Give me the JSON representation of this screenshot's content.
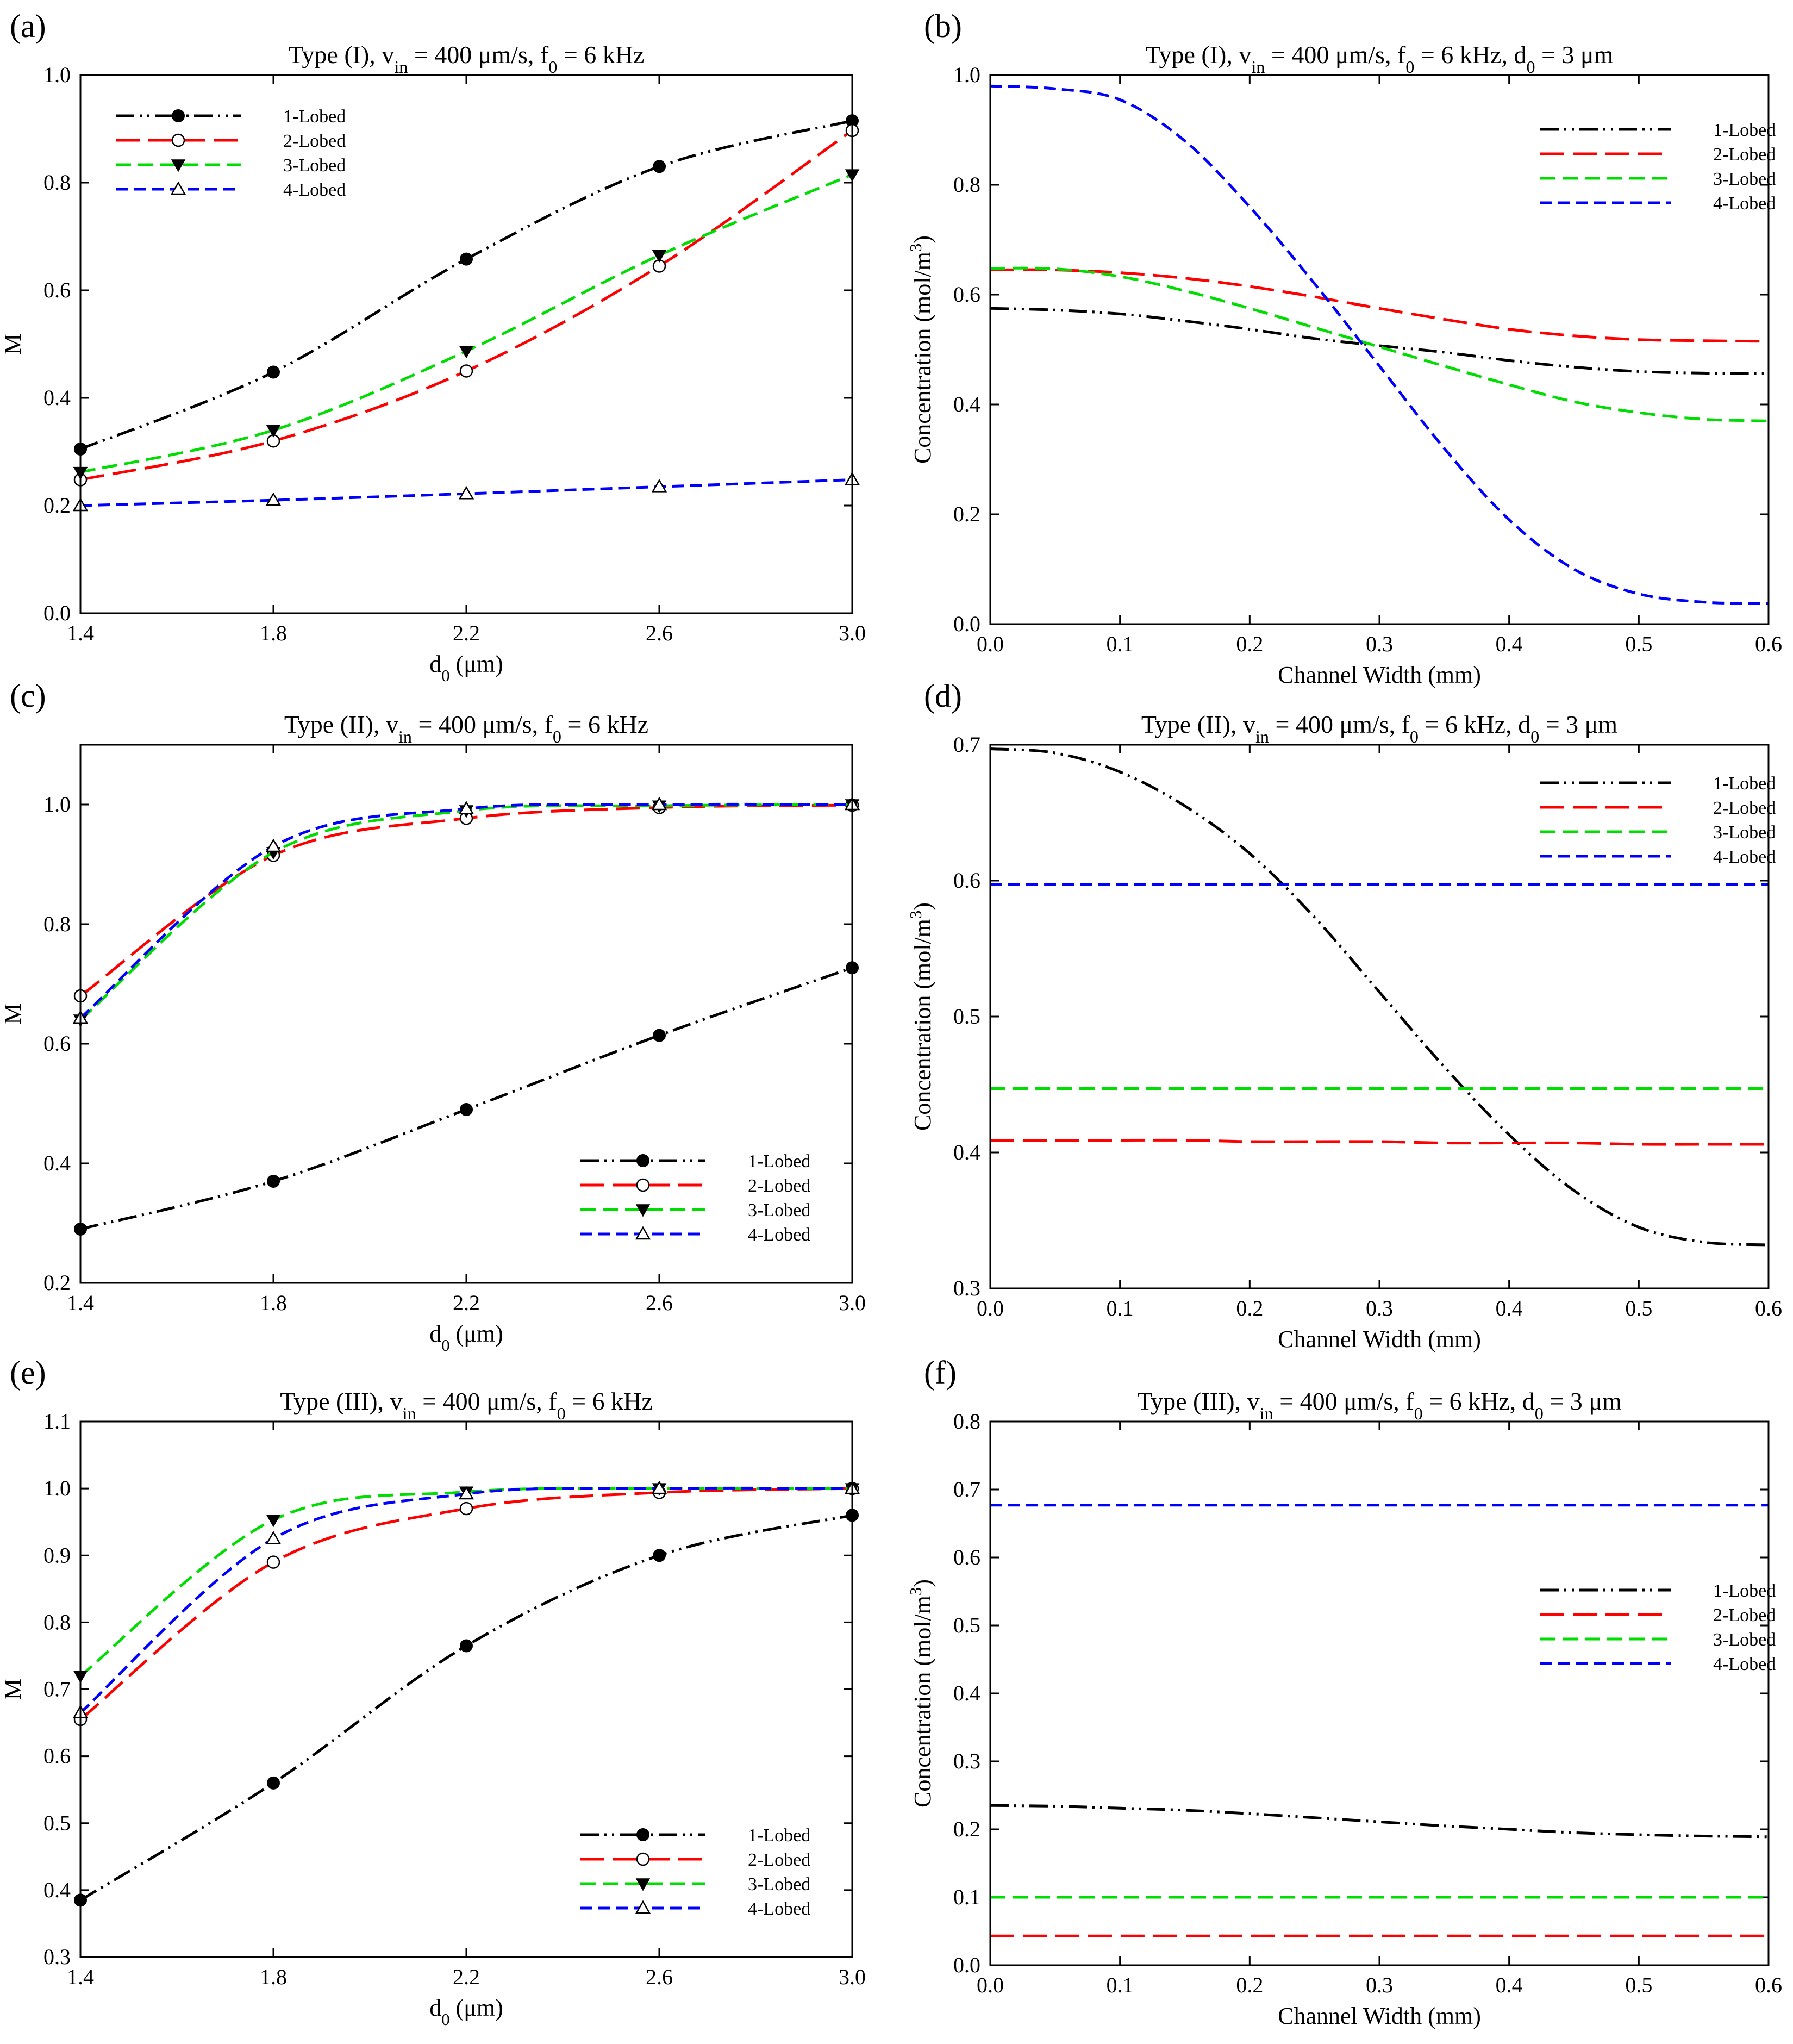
{
  "figure": {
    "panels": [
      "(a)",
      "(b)",
      "(c)",
      "(d)",
      "(e)",
      "(f)"
    ]
  },
  "series_styles": {
    "1-Lobed": {
      "color": "#000000",
      "dash": "dashdotdot",
      "marker": "filled-circle"
    },
    "2-Lobed": {
      "color": "#ff0000",
      "dash": "longdash",
      "marker": "open-circle"
    },
    "3-Lobed": {
      "color": "#00dd00",
      "dash": "dash",
      "marker": "filled-triangle-down"
    },
    "4-Lobed": {
      "color": "#0000ff",
      "dash": "shortdash",
      "marker": "open-triangle-up"
    }
  },
  "chart_data": [
    {
      "panel": "(a)",
      "type": "line",
      "title": {
        "pre": "Type (I), v",
        "sub": "in",
        "post": " = 400 μm/s, f",
        "sub2": "0",
        "post2": " = 6 kHz",
        "sub3": "",
        "post3": ""
      },
      "xlabel": {
        "pre": "d",
        "sub": "0",
        "post": " (μm)"
      },
      "ylabel": {
        "pre": "M",
        "sup": "",
        "post": ""
      },
      "xlim": [
        1.4,
        3.0
      ],
      "ylim": [
        0.0,
        1.0
      ],
      "xticks": [
        "1.4",
        "1.8",
        "2.2",
        "2.6",
        "3.0"
      ],
      "yticks": [
        "0.0",
        "0.2",
        "0.4",
        "0.6",
        "0.8",
        "1.0"
      ],
      "legend": "top-left",
      "x": [
        1.4,
        1.8,
        2.2,
        2.6,
        3.0
      ],
      "series": [
        {
          "name": "1-Lobed",
          "values": [
            0.305,
            0.448,
            0.658,
            0.83,
            0.915
          ]
        },
        {
          "name": "2-Lobed",
          "values": [
            0.248,
            0.32,
            0.45,
            0.645,
            0.897
          ]
        },
        {
          "name": "3-Lobed",
          "values": [
            0.262,
            0.34,
            0.487,
            0.665,
            0.815
          ]
        },
        {
          "name": "4-Lobed",
          "values": [
            0.2,
            0.21,
            0.222,
            0.235,
            0.248
          ]
        }
      ]
    },
    {
      "panel": "(b)",
      "type": "line",
      "title": {
        "pre": "Type (I), v",
        "sub": "in",
        "post": " = 400 μm/s, f",
        "sub2": "0",
        "post2": " = 6 kHz, d",
        "sub3": "0",
        "post3": " = 3 μm"
      },
      "xlabel": {
        "pre": "Channel Width (mm)",
        "sub": "",
        "post": ""
      },
      "ylabel": {
        "pre": "Concentration (mol/m",
        "sup": "3",
        "post": ")"
      },
      "xlim": [
        0.0,
        0.6
      ],
      "ylim": [
        0.0,
        1.0
      ],
      "xticks": [
        "0.0",
        "0.1",
        "0.2",
        "0.3",
        "0.4",
        "0.5",
        "0.6"
      ],
      "yticks": [
        "0.0",
        "0.2",
        "0.4",
        "0.6",
        "0.8",
        "1.0"
      ],
      "legend": "top-right",
      "x": [
        0.0,
        0.05,
        0.1,
        0.15,
        0.2,
        0.25,
        0.3,
        0.35,
        0.4,
        0.45,
        0.5,
        0.55,
        0.6
      ],
      "series": [
        {
          "name": "1-Lobed",
          "values": [
            0.575,
            0.572,
            0.565,
            0.552,
            0.537,
            0.52,
            0.507,
            0.495,
            0.48,
            0.468,
            0.46,
            0.457,
            0.456
          ]
        },
        {
          "name": "2-Lobed",
          "values": [
            0.645,
            0.645,
            0.64,
            0.63,
            0.615,
            0.596,
            0.575,
            0.555,
            0.537,
            0.525,
            0.518,
            0.516,
            0.515
          ]
        },
        {
          "name": "3-Lobed",
          "values": [
            0.648,
            0.647,
            0.633,
            0.607,
            0.575,
            0.54,
            0.505,
            0.47,
            0.436,
            0.405,
            0.385,
            0.373,
            0.37
          ]
        },
        {
          "name": "4-Lobed",
          "values": [
            0.98,
            0.975,
            0.955,
            0.88,
            0.76,
            0.62,
            0.47,
            0.32,
            0.19,
            0.1,
            0.055,
            0.04,
            0.037
          ]
        }
      ]
    },
    {
      "panel": "(c)",
      "type": "line",
      "title": {
        "pre": "Type (II), v",
        "sub": "in",
        "post": " = 400 μm/s, f",
        "sub2": "0",
        "post2": " = 6 kHz",
        "sub3": "",
        "post3": ""
      },
      "xlabel": {
        "pre": "d",
        "sub": "0",
        "post": " (μm)"
      },
      "ylabel": {
        "pre": "M",
        "sup": "",
        "post": ""
      },
      "xlim": [
        1.4,
        3.0
      ],
      "ylim": [
        0.2,
        1.1
      ],
      "xticks": [
        "1.4",
        "1.8",
        "2.2",
        "2.6",
        "3.0"
      ],
      "yticks": [
        "0.2",
        "0.4",
        "0.6",
        "0.8",
        "1.0"
      ],
      "legend": "bottom-right",
      "x": [
        1.4,
        1.8,
        2.2,
        2.6,
        3.0
      ],
      "series": [
        {
          "name": "1-Lobed",
          "values": [
            0.29,
            0.37,
            0.49,
            0.614,
            0.727
          ]
        },
        {
          "name": "2-Lobed",
          "values": [
            0.68,
            0.915,
            0.977,
            0.995,
            0.999
          ]
        },
        {
          "name": "3-Lobed",
          "values": [
            0.64,
            0.92,
            0.99,
            0.998,
            1.0
          ]
        },
        {
          "name": "4-Lobed",
          "values": [
            0.643,
            0.93,
            0.993,
            1.0,
            1.0
          ]
        }
      ]
    },
    {
      "panel": "(d)",
      "type": "line",
      "title": {
        "pre": "Type (II), v",
        "sub": "in",
        "post": " = 400 μm/s, f",
        "sub2": "0",
        "post2": " = 6 kHz, d",
        "sub3": "0",
        "post3": " = 3 μm"
      },
      "xlabel": {
        "pre": "Channel Width (mm)",
        "sub": "",
        "post": ""
      },
      "ylabel": {
        "pre": "Concentration (mol/m",
        "sup": "3",
        "post": ")"
      },
      "xlim": [
        0.0,
        0.6
      ],
      "ylim": [
        0.3,
        0.7
      ],
      "xticks": [
        "0.0",
        "0.1",
        "0.2",
        "0.3",
        "0.4",
        "0.5",
        "0.6"
      ],
      "yticks": [
        "0.3",
        "0.4",
        "0.5",
        "0.6",
        "0.7"
      ],
      "legend": "top-right",
      "x": [
        0.0,
        0.05,
        0.1,
        0.15,
        0.2,
        0.25,
        0.3,
        0.35,
        0.4,
        0.45,
        0.5,
        0.55,
        0.6
      ],
      "series": [
        {
          "name": "1-Lobed",
          "values": [
            0.697,
            0.694,
            0.68,
            0.655,
            0.62,
            0.573,
            0.518,
            0.463,
            0.413,
            0.372,
            0.345,
            0.334,
            0.332
          ]
        },
        {
          "name": "2-Lobed",
          "values": [
            0.409,
            0.409,
            0.409,
            0.409,
            0.408,
            0.408,
            0.408,
            0.407,
            0.407,
            0.407,
            0.406,
            0.406,
            0.406
          ]
        },
        {
          "name": "3-Lobed",
          "values": [
            0.447,
            0.447,
            0.447,
            0.447,
            0.447,
            0.447,
            0.447,
            0.447,
            0.447,
            0.447,
            0.447,
            0.447,
            0.447
          ]
        },
        {
          "name": "4-Lobed",
          "values": [
            0.597,
            0.597,
            0.597,
            0.597,
            0.597,
            0.597,
            0.597,
            0.597,
            0.597,
            0.597,
            0.597,
            0.597,
            0.597
          ]
        }
      ]
    },
    {
      "panel": "(e)",
      "type": "line",
      "title": {
        "pre": "Type (III), v",
        "sub": "in",
        "post": " = 400 μm/s, f",
        "sub2": "0",
        "post2": " = 6 kHz",
        "sub3": "",
        "post3": ""
      },
      "xlabel": {
        "pre": "d",
        "sub": "0",
        "post": " (μm)"
      },
      "ylabel": {
        "pre": "M",
        "sup": "",
        "post": ""
      },
      "xlim": [
        1.4,
        3.0
      ],
      "ylim": [
        0.3,
        1.1
      ],
      "xticks": [
        "1.4",
        "1.8",
        "2.2",
        "2.6",
        "3.0"
      ],
      "yticks": [
        "0.3",
        "0.4",
        "0.5",
        "0.6",
        "0.7",
        "0.8",
        "0.9",
        "1.0",
        "1.1"
      ],
      "legend": "bottom-right",
      "x": [
        1.4,
        1.8,
        2.2,
        2.6,
        3.0
      ],
      "series": [
        {
          "name": "1-Lobed",
          "values": [
            0.385,
            0.56,
            0.765,
            0.9,
            0.96
          ]
        },
        {
          "name": "2-Lobed",
          "values": [
            0.655,
            0.89,
            0.97,
            0.994,
            1.0
          ]
        },
        {
          "name": "3-Lobed",
          "values": [
            0.72,
            0.953,
            0.995,
            1.0,
            1.0
          ]
        },
        {
          "name": "4-Lobed",
          "values": [
            0.665,
            0.925,
            0.992,
            1.0,
            1.0
          ]
        }
      ]
    },
    {
      "panel": "(f)",
      "type": "line",
      "title": {
        "pre": "Type (III), v",
        "sub": "in",
        "post": " = 400 μm/s, f",
        "sub2": "0",
        "post2": " = 6 kHz, d",
        "sub3": "0",
        "post3": " = 3 μm"
      },
      "xlabel": {
        "pre": "Channel Width (mm)",
        "sub": "",
        "post": ""
      },
      "ylabel": {
        "pre": "Concentration (mol/m",
        "sup": "3",
        "post": ")"
      },
      "xlim": [
        0.0,
        0.6
      ],
      "ylim": [
        0.0,
        0.8
      ],
      "xticks": [
        "0.0",
        "0.1",
        "0.2",
        "0.3",
        "0.4",
        "0.5",
        "0.6"
      ],
      "yticks": [
        "0.0",
        "0.1",
        "0.2",
        "0.3",
        "0.4",
        "0.5",
        "0.6",
        "0.7",
        "0.8"
      ],
      "legend": "middle-right",
      "x": [
        0.0,
        0.05,
        0.1,
        0.15,
        0.2,
        0.25,
        0.3,
        0.35,
        0.4,
        0.45,
        0.5,
        0.55,
        0.6
      ],
      "series": [
        {
          "name": "1-Lobed",
          "values": [
            0.235,
            0.234,
            0.231,
            0.228,
            0.223,
            0.217,
            0.211,
            0.205,
            0.2,
            0.195,
            0.192,
            0.19,
            0.189
          ]
        },
        {
          "name": "2-Lobed",
          "values": [
            0.043,
            0.043,
            0.043,
            0.043,
            0.043,
            0.043,
            0.043,
            0.043,
            0.043,
            0.043,
            0.043,
            0.043,
            0.043
          ]
        },
        {
          "name": "3-Lobed",
          "values": [
            0.1,
            0.1,
            0.1,
            0.1,
            0.1,
            0.1,
            0.1,
            0.1,
            0.1,
            0.1,
            0.1,
            0.1,
            0.1
          ]
        },
        {
          "name": "4-Lobed",
          "values": [
            0.677,
            0.677,
            0.677,
            0.677,
            0.677,
            0.677,
            0.677,
            0.677,
            0.677,
            0.677,
            0.677,
            0.677,
            0.677
          ]
        }
      ]
    }
  ]
}
